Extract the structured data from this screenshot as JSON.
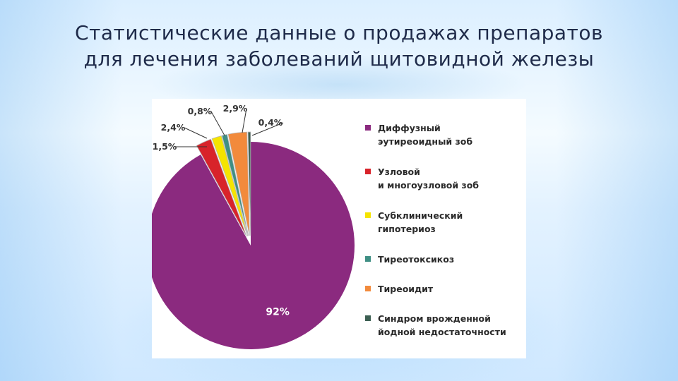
{
  "slide": {
    "title": "Статистические данные о продажах препаратов для лечения заболеваний щитовидной железы"
  },
  "chart_data": {
    "type": "pie",
    "title": "",
    "slices": [
      {
        "name": "Диффузный\nэутиреоидный зоб",
        "value": 92,
        "label": "92%",
        "color": "#8b2a7f"
      },
      {
        "name": "Узловой\nи многоузловой зоб",
        "value": 2.4,
        "label": "2,4%",
        "color": "#d8232a"
      },
      {
        "name": "Субклинический\nгипотериоз",
        "value": 1.5,
        "label": "1,5%",
        "color": "#f5e400"
      },
      {
        "name": "Тиреотоксикоз",
        "value": 0.8,
        "label": "0,8%",
        "color": "#3f8f84"
      },
      {
        "name": "Тиреоидит",
        "value": 2.9,
        "label": "2,9%",
        "color": "#f28a3c"
      },
      {
        "name": "Синдром врожденной\nйодной недостаточности",
        "value": 0.4,
        "label": "0,4%",
        "color": "#3c5f52"
      }
    ],
    "legend": "right"
  }
}
